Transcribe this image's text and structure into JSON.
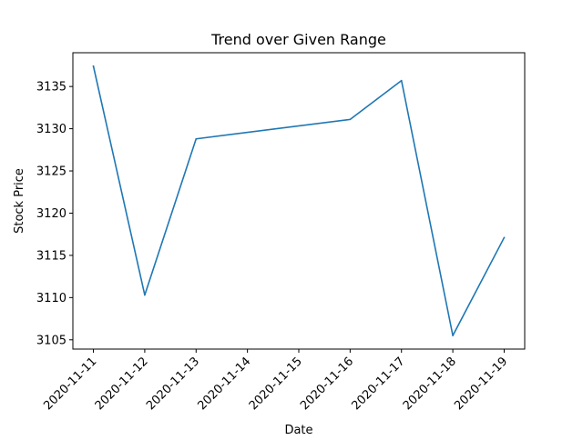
{
  "chart_data": {
    "type": "line",
    "title": "Trend over Given Range",
    "xlabel": "Date",
    "ylabel": "Stock Price",
    "x": [
      "2020-11-11",
      "2020-11-12",
      "2020-11-13",
      "2020-11-16",
      "2020-11-17",
      "2020-11-18",
      "2020-11-19"
    ],
    "x_ticks": [
      "2020-11-11",
      "2020-11-12",
      "2020-11-13",
      "2020-11-14",
      "2020-11-15",
      "2020-11-16",
      "2020-11-17",
      "2020-11-18",
      "2020-11-19"
    ],
    "series": [
      {
        "values": [
          3137.4,
          3110.3,
          3128.8,
          3131.1,
          3135.7,
          3105.5,
          3117.1
        ],
        "color": "#1f77b4"
      }
    ],
    "y_ticks": [
      3105,
      3110,
      3115,
      3120,
      3125,
      3130,
      3135
    ],
    "xlim": [
      "2020-11-10T14:24",
      "2020-11-19T09:36"
    ],
    "ylim": [
      3103.9,
      3139.0
    ],
    "grid": false
  }
}
